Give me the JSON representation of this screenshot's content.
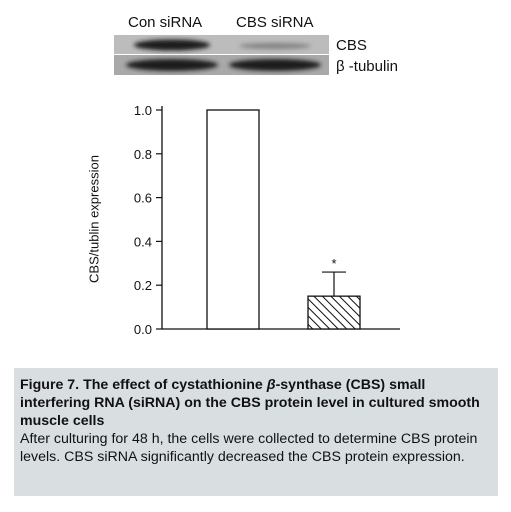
{
  "blot": {
    "lanes": [
      "Con siRNA",
      "CBS siRNA"
    ],
    "bands": [
      "CBS",
      "β -tubulin"
    ]
  },
  "chart_data": {
    "type": "bar",
    "categories": [
      "Con siRNA",
      "CBS siRNA"
    ],
    "values": [
      1.0,
      0.15
    ],
    "errors": [
      0,
      0.11
    ],
    "fills": [
      "white",
      "hatched"
    ],
    "annotations": [
      "",
      "*"
    ],
    "title": "",
    "xlabel": "",
    "ylabel": "CBS/tublin expression",
    "ylim": [
      0,
      1.0
    ],
    "yticks": [
      "0.0",
      "0.2",
      "0.4",
      "0.6",
      "0.8",
      "1.0"
    ],
    "grid": false,
    "legend": "none"
  },
  "caption": {
    "title_prefix": "Figure 7.  The effect of cystathionine ",
    "title_beta": "β",
    "title_suffix": "-synthase (CBS) small interfering RNA (siRNA) on the CBS protein level in cultured smooth muscle cells",
    "body": "After culturing for 48 h, the cells were collected to determine CBS protein levels. CBS siRNA significantly decreased the CBS protein expression."
  },
  "colors": {
    "caption_bg": "#d9dfe1",
    "blot_bg": "#b4b4b4",
    "band": "#1e1e1e"
  }
}
